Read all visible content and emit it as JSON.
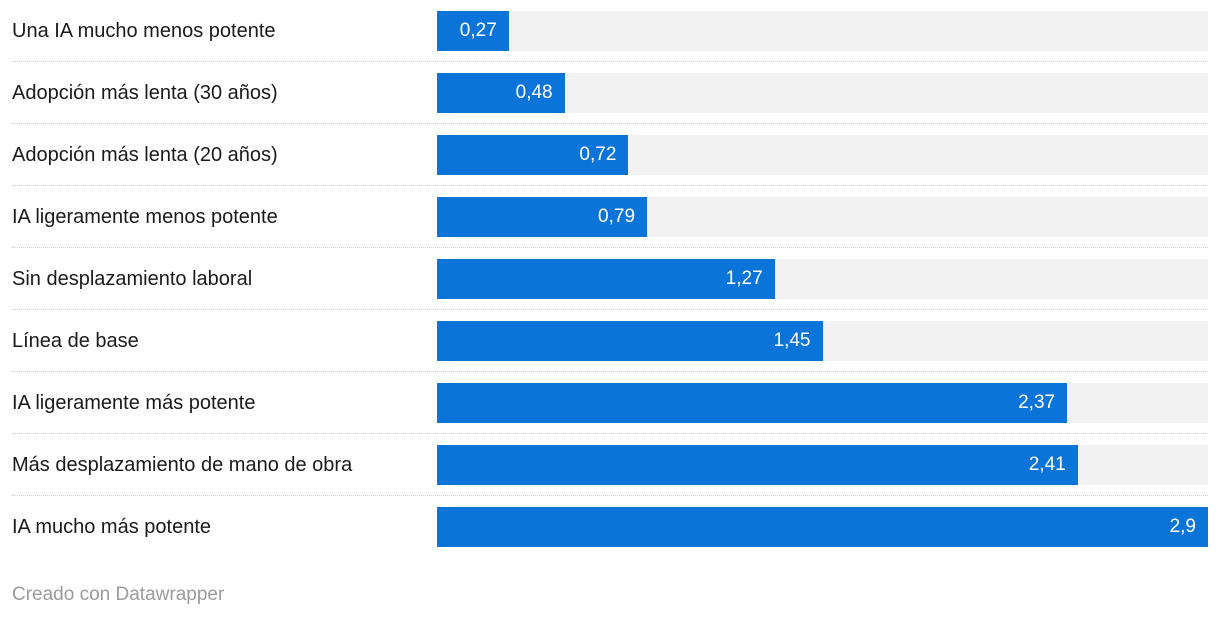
{
  "chart_data": {
    "type": "bar",
    "orientation": "horizontal",
    "title": "",
    "xlabel": "",
    "ylabel": "",
    "grid": false,
    "legend": false,
    "xlim": [
      0,
      2.9
    ],
    "categories": [
      "Una IA mucho menos potente",
      "Adopción más lenta (30 años)",
      "Adopción más lenta (20 años)",
      "IA ligeramente menos potente",
      "Sin desplazamiento laboral",
      "Línea de base",
      "IA ligeramente más potente",
      "Más desplazamiento de mano de obra",
      "IA mucho más potente"
    ],
    "values": [
      0.27,
      0.48,
      0.72,
      0.79,
      1.27,
      1.45,
      2.37,
      2.41,
      2.9
    ],
    "value_labels": [
      "0,27",
      "0,48",
      "0,72",
      "0,79",
      "1,27",
      "1,45",
      "2,37",
      "2,41",
      "2,9"
    ]
  },
  "footer": {
    "credit": "Creado con Datawrapper"
  },
  "colors": {
    "bar": "#0b74d8",
    "track": "#f2f2f2",
    "label_text": "#1a1a1a",
    "value_text": "#ffffff",
    "separator": "#cfcfcf",
    "footer_text": "#9b9b9b",
    "background": "#ffffff"
  }
}
